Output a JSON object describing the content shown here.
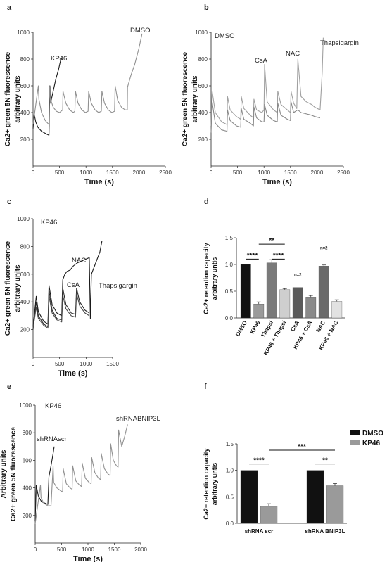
{
  "chart_data": [
    {
      "panel": "a",
      "type": "line",
      "ylabel": [
        "Ca2+ green 5N fluorescence",
        "arbitrary units"
      ],
      "xlabel": "Time (s)",
      "xlim": [
        0,
        2500
      ],
      "ylim": [
        0,
        1000
      ],
      "xticks": [
        "0",
        "500",
        "1000",
        "1500",
        "2000",
        "2500"
      ],
      "yticks": [
        "200",
        "400",
        "600",
        "800",
        "1000"
      ],
      "annotations": [
        "KP46",
        "DMSO"
      ],
      "series": [
        {
          "color": "#1a1a1a",
          "x": [
            0,
            20,
            50,
            90,
            160,
            250,
            300,
            318,
            330,
            380,
            430,
            480,
            520,
            545
          ],
          "y": [
            280,
            390,
            330,
            290,
            260,
            240,
            230,
            600,
            470,
            560,
            650,
            720,
            790,
            810
          ]
        },
        {
          "color": "#909090",
          "x": [
            0,
            100,
            110,
            160,
            230,
            300,
            310,
            330,
            330,
            380,
            440,
            500,
            560,
            565,
            620,
            690,
            760,
            790,
            800,
            850,
            920,
            990,
            1040,
            1050,
            1100,
            1170,
            1240,
            1290,
            1300,
            1350,
            1420,
            1490,
            1540,
            1550,
            1600,
            1670,
            1740,
            1780,
            1785,
            1850,
            1920,
            2000,
            2060
          ],
          "y": [
            310,
            600,
            500,
            400,
            340,
            310,
            600,
            470,
            500,
            440,
            410,
            400,
            420,
            560,
            470,
            420,
            400,
            410,
            560,
            470,
            420,
            400,
            410,
            560,
            470,
            420,
            400,
            410,
            560,
            470,
            420,
            400,
            410,
            600,
            490,
            440,
            420,
            420,
            590,
            680,
            760,
            880,
            990
          ]
        }
      ]
    },
    {
      "panel": "b",
      "type": "line",
      "ylabel": [
        "Ca2+ green 5N fluorescence",
        "arbitrary units"
      ],
      "xlabel": "Time (s)",
      "xlim": [
        0,
        2500
      ],
      "ylim": [
        0,
        1000
      ],
      "xticks": [
        "0",
        "500",
        "1000",
        "1500",
        "2000",
        "2500"
      ],
      "yticks": [
        "200",
        "400",
        "600",
        "800",
        "1000"
      ],
      "annotations": [
        "DMSO",
        "CsA",
        "NAC",
        "Thapsigargin"
      ],
      "series": [
        {
          "color": "#a0a0a0",
          "x": [
            0,
            20,
            80,
            200,
            300,
            310,
            360,
            480,
            560,
            570,
            620,
            740,
            800,
            810,
            860,
            960,
            1000,
            1010,
            1060,
            1180,
            1250,
            1260,
            1320,
            1440,
            1500,
            1510,
            1560,
            1620,
            1640,
            1700,
            1800,
            1900,
            1960,
            2060,
            2100,
            2120
          ],
          "y": [
            300,
            560,
            400,
            330,
            310,
            520,
            420,
            370,
            350,
            520,
            430,
            380,
            360,
            500,
            420,
            400,
            420,
            760,
            480,
            420,
            400,
            560,
            460,
            420,
            400,
            560,
            470,
            430,
            800,
            520,
            480,
            460,
            440,
            420,
            700,
            960
          ]
        },
        {
          "color": "#888888",
          "x": [
            0,
            20,
            80,
            200,
            300,
            310,
            360,
            480,
            560,
            570,
            620,
            740,
            800,
            810,
            860,
            960,
            1000,
            1010,
            1060,
            1180,
            1250,
            1260,
            1320,
            1440,
            1500,
            1510,
            1560,
            1640,
            1700,
            1800,
            1900,
            1960,
            2060
          ],
          "y": [
            250,
            480,
            320,
            270,
            260,
            420,
            340,
            300,
            290,
            430,
            350,
            320,
            300,
            440,
            360,
            330,
            330,
            460,
            380,
            340,
            330,
            470,
            380,
            350,
            340,
            480,
            400,
            420,
            400,
            390,
            380,
            370,
            360
          ]
        }
      ]
    },
    {
      "panel": "c",
      "type": "line",
      "ylabel": [
        "Ca2+ green 5N fluorescence",
        "arbitrary units"
      ],
      "xlabel": "Time (s)",
      "xlim": [
        0,
        1500
      ],
      "ylim": [
        0,
        1000
      ],
      "xticks": [
        "0",
        "500",
        "1000",
        "1500"
      ],
      "yticks": [
        "200",
        "400",
        "600",
        "800",
        "1000"
      ],
      "annotations": [
        "KP46",
        "NAC",
        "CsA",
        "Thapsigargin"
      ],
      "series": [
        {
          "color": "#1a1a1a",
          "x": [
            0,
            60,
            100,
            200,
            280,
            300,
            360,
            450,
            540,
            560,
            600,
            640,
            700,
            760,
            830,
            1060,
            1080,
            1100,
            1180,
            1260,
            1300
          ],
          "y": [
            220,
            440,
            330,
            260,
            240,
            520,
            380,
            320,
            300,
            560,
            600,
            620,
            630,
            660,
            680,
            720,
            280,
            600,
            680,
            760,
            840
          ]
        },
        {
          "color": "#2a2a2a",
          "x": [
            0,
            60,
            100,
            200,
            280,
            300,
            360,
            450,
            540,
            560,
            620,
            720,
            800,
            820,
            880,
            980,
            1060
          ],
          "y": [
            200,
            400,
            300,
            240,
            220,
            480,
            340,
            280,
            270,
            500,
            380,
            320,
            310,
            500,
            400,
            340,
            320
          ]
        },
        {
          "color": "#4a4a4a",
          "x": [
            0,
            60,
            100,
            200,
            280,
            300,
            360,
            450,
            540,
            560,
            620,
            720,
            800,
            820,
            880,
            980,
            1060
          ],
          "y": [
            210,
            360,
            280,
            230,
            210,
            440,
            320,
            270,
            255,
            450,
            350,
            300,
            290,
            460,
            370,
            320,
            300
          ]
        }
      ]
    },
    {
      "panel": "d",
      "type": "bar",
      "ylabel": [
        "Ca2+ retention capacity",
        "arbitrary untis"
      ],
      "ylim": [
        0,
        1.5
      ],
      "yticks": [
        "0.0",
        "0.5",
        "1.0",
        "1.5"
      ],
      "categories": [
        "DMSO",
        "KP46",
        "Thapsi",
        "KP46 + Thapsi",
        "CsA",
        "KP46 + CsA",
        "NAC",
        "KP46 + NAC"
      ],
      "values": [
        1.0,
        0.26,
        1.03,
        0.53,
        0.57,
        0.39,
        0.97,
        0.31
      ],
      "errors": [
        0.0,
        0.04,
        0.06,
        0.02,
        0.0,
        0.03,
        0.02,
        0.03
      ],
      "colors": [
        "#111111",
        "#9a9a9a",
        "#7a7a7a",
        "#cfcfcf",
        "#5a5a5a",
        "#8a8a8a",
        "#6a6a6a",
        "#e2e2e2"
      ],
      "significance": [
        "****",
        "****",
        "**"
      ],
      "n_labels": [
        "n=2",
        "n=2"
      ]
    },
    {
      "panel": "e",
      "type": "line",
      "ylabel": [
        "Arbitrary units",
        "Ca2+ green 5N fluorescence"
      ],
      "xlabel": "Time (s)",
      "xlim": [
        0,
        2000
      ],
      "ylim": [
        0,
        1000
      ],
      "xticks": [
        "0",
        "500",
        "1000",
        "1500",
        "2000"
      ],
      "yticks": [
        "200",
        "400",
        "600",
        "800",
        "1000"
      ],
      "annotations": [
        "KP46",
        "shRNAscr",
        "shRNABNIP3L"
      ],
      "series": [
        {
          "color": "#1a1a1a",
          "x": [
            0,
            20,
            60,
            120,
            240,
            260,
            300,
            340,
            360
          ],
          "y": [
            160,
            420,
            340,
            300,
            280,
            480,
            560,
            650,
            700
          ]
        },
        {
          "color": "#909090",
          "x": [
            0,
            100,
            110,
            160,
            240,
            300,
            340,
            350,
            410,
            480,
            520,
            530,
            590,
            660,
            700,
            710,
            770,
            840,
            880,
            890,
            950,
            1020,
            1060,
            1070,
            1130,
            1200,
            1240,
            1250,
            1310,
            1380,
            1420,
            1430,
            1480,
            1540,
            1570,
            1580,
            1640,
            1700,
            1750
          ],
          "y": [
            140,
            420,
            330,
            290,
            270,
            270,
            560,
            440,
            400,
            380,
            370,
            540,
            430,
            400,
            390,
            560,
            450,
            420,
            410,
            580,
            470,
            440,
            430,
            620,
            510,
            470,
            460,
            650,
            540,
            500,
            490,
            720,
            600,
            560,
            550,
            820,
            700,
            780,
            860
          ]
        }
      ]
    },
    {
      "panel": "f",
      "type": "bar",
      "ylabel": [
        "Ca2+ retention capacity",
        "arbitrary untis"
      ],
      "ylim": [
        0,
        1.5
      ],
      "yticks": [
        "0.0",
        "0.5",
        "1.0",
        "1.5"
      ],
      "categories": [
        "shRNA scr",
        "shRNA BNIP3L"
      ],
      "legend": [
        "DMSO",
        "KP46"
      ],
      "legend_position": "right",
      "series": [
        {
          "name": "DMSO",
          "color": "#111111",
          "values": [
            1.0,
            1.0
          ],
          "errors": [
            0.0,
            0.0
          ]
        },
        {
          "name": "KP46",
          "color": "#9a9a9a",
          "values": [
            0.32,
            0.71
          ],
          "errors": [
            0.05,
            0.04
          ]
        }
      ],
      "significance": [
        "****",
        "**",
        "***"
      ]
    }
  ]
}
